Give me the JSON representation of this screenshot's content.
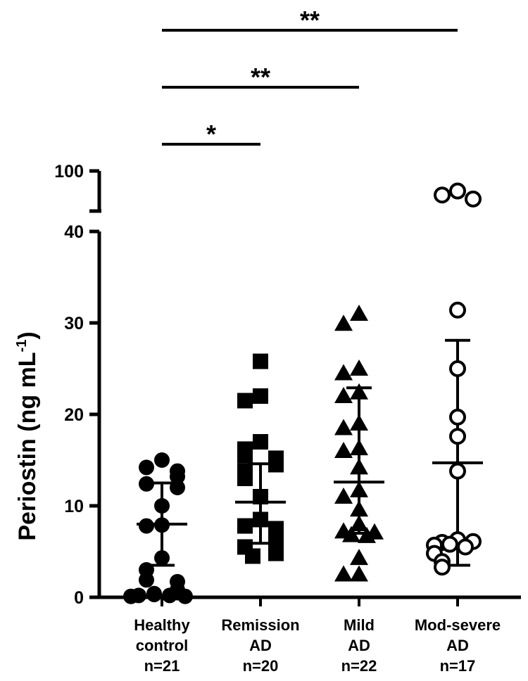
{
  "chart_data": {
    "type": "scatter",
    "ylabel": "Periostin (ng mL",
    "ylabel_sup": "-1",
    "ylabel_close": ")",
    "axis_break": {
      "lower_range": [
        0,
        40
      ],
      "upper_range": [
        90,
        100
      ]
    },
    "yticks_lower": [
      "0",
      "10",
      "20",
      "30",
      "40"
    ],
    "ytick_upper": "100",
    "categories": [
      {
        "lines": [
          "Healthy",
          "control",
          "n=21"
        ]
      },
      {
        "lines": [
          "Remission",
          "AD",
          "n=20"
        ]
      },
      {
        "lines": [
          "Mild",
          "AD",
          "n=22"
        ]
      },
      {
        "lines": [
          "Mod-severe",
          "AD",
          "n=17"
        ]
      }
    ],
    "series": [
      {
        "marker": "filled-circle",
        "mean": 8.0,
        "sd_low": 3.5,
        "sd_high": 12.5,
        "values": [
          15.0,
          14.2,
          13.8,
          13.2,
          12.4,
          12.0,
          10.0,
          7.9,
          7.8,
          4.3,
          3.0,
          1.9,
          1.7,
          0.8,
          0.5,
          0.4,
          0.3,
          0.2,
          0.2,
          0.1,
          0.1
        ]
      },
      {
        "marker": "filled-square",
        "mean": 10.4,
        "sd_low": 5.9,
        "sd_high": 14.6,
        "values": [
          25.8,
          22.0,
          21.5,
          17.0,
          16.2,
          15.5,
          15.2,
          14.5,
          13.8,
          13.0,
          11.0,
          8.5,
          7.8,
          7.5,
          7.0,
          6.2,
          5.5,
          5.2,
          4.8,
          4.5
        ]
      },
      {
        "marker": "filled-triangle",
        "mean": 12.6,
        "sd_low": 7.0,
        "sd_high": 22.9,
        "values": [
          31.0,
          29.9,
          25.0,
          24.5,
          22.4,
          22.0,
          19.0,
          18.5,
          16.3,
          16.0,
          14.2,
          11.7,
          11.0,
          9.6,
          8.0,
          7.2,
          7.1,
          6.8,
          6.7,
          4.3,
          2.5,
          2.5
        ]
      },
      {
        "marker": "open-circle",
        "mean": 14.7,
        "sd_low": 3.5,
        "sd_high": 28.1,
        "values": [
          95.0,
          94.0,
          93.0,
          31.4,
          25.0,
          19.7,
          17.6,
          13.8,
          6.3,
          6.0,
          6.1,
          5.8,
          5.5,
          5.7,
          4.8,
          3.9,
          3.3
        ]
      }
    ],
    "significance": [
      {
        "from": 0,
        "to": 1,
        "label": "*"
      },
      {
        "from": 0,
        "to": 2,
        "label": "**"
      },
      {
        "from": 0,
        "to": 3,
        "label": "**"
      }
    ]
  }
}
